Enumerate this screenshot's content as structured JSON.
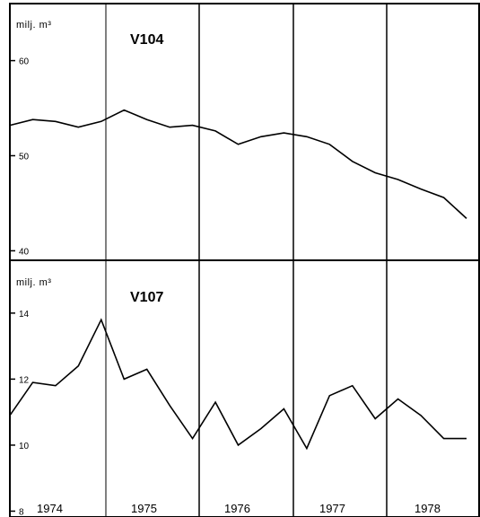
{
  "chart_data": [
    {
      "type": "line",
      "title": "V104",
      "unit_label": "milj. m³",
      "ylim": [
        39,
        66
      ],
      "yticks": [
        40,
        50,
        60
      ],
      "grid": false,
      "x": [
        0,
        0.25,
        0.5,
        0.75,
        1,
        1.25,
        1.5,
        1.75,
        2,
        2.25,
        2.5,
        2.75,
        3,
        3.25,
        3.5,
        3.75,
        4,
        4.25,
        4.5,
        4.75,
        5
      ],
      "values": [
        53.2,
        53.8,
        53.6,
        53.0,
        53.6,
        54.8,
        53.8,
        53.0,
        53.2,
        52.6,
        51.2,
        52.0,
        52.4,
        52.0,
        51.2,
        49.4,
        48.2,
        47.5,
        46.5,
        45.6,
        43.4
      ]
    },
    {
      "type": "line",
      "title": "V107",
      "unit_label": "milj. m³",
      "ylim": [
        7.85,
        15.6
      ],
      "yticks": [
        8,
        10,
        12,
        14
      ],
      "grid": false,
      "x": [
        0,
        0.25,
        0.5,
        0.75,
        1,
        1.25,
        1.5,
        1.75,
        2,
        2.25,
        2.5,
        2.75,
        3,
        3.25,
        3.5,
        3.75,
        4,
        4.25,
        4.5,
        4.75,
        5
      ],
      "values": [
        10.9,
        11.9,
        11.8,
        12.4,
        13.8,
        12.0,
        12.3,
        11.2,
        10.2,
        11.3,
        10.0,
        10.5,
        11.1,
        9.9,
        11.5,
        11.8,
        10.8,
        11.4,
        10.9,
        10.2,
        10.2
      ]
    }
  ],
  "years": [
    "1974",
    "1975",
    "1976",
    "1977",
    "1978"
  ]
}
